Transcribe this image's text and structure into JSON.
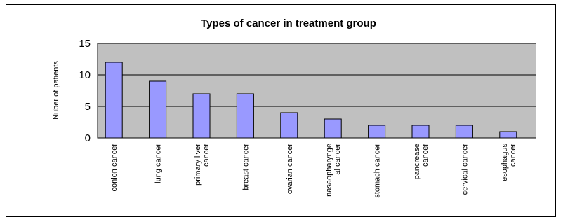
{
  "chart_data": {
    "type": "bar",
    "title": "Types of cancer in treatment group",
    "ylabel": "Nuber of patients",
    "xlabel": "",
    "ylim": [
      0,
      15
    ],
    "yticks": [
      0,
      5,
      10,
      15
    ],
    "grid": true,
    "legend": "none",
    "categories": [
      [
        "conlon cancer"
      ],
      [
        "lung cancer"
      ],
      [
        "primary liver",
        "cancer"
      ],
      [
        "breast cancer"
      ],
      [
        "ovarian cancer"
      ],
      [
        "nasaopharynge",
        "al cancer"
      ],
      [
        "stomach cancer"
      ],
      [
        "pancrease",
        "cancer"
      ],
      [
        "cervical cancer"
      ],
      [
        "esophagus",
        "cancer"
      ]
    ],
    "values": [
      12,
      9,
      7,
      7,
      4,
      3,
      2,
      2,
      2,
      1
    ],
    "colors": {
      "bar_fill": "#9999FF",
      "bar_stroke": "#000000",
      "plot_bg": "#C0C0C0",
      "gridline": "#000000"
    }
  }
}
